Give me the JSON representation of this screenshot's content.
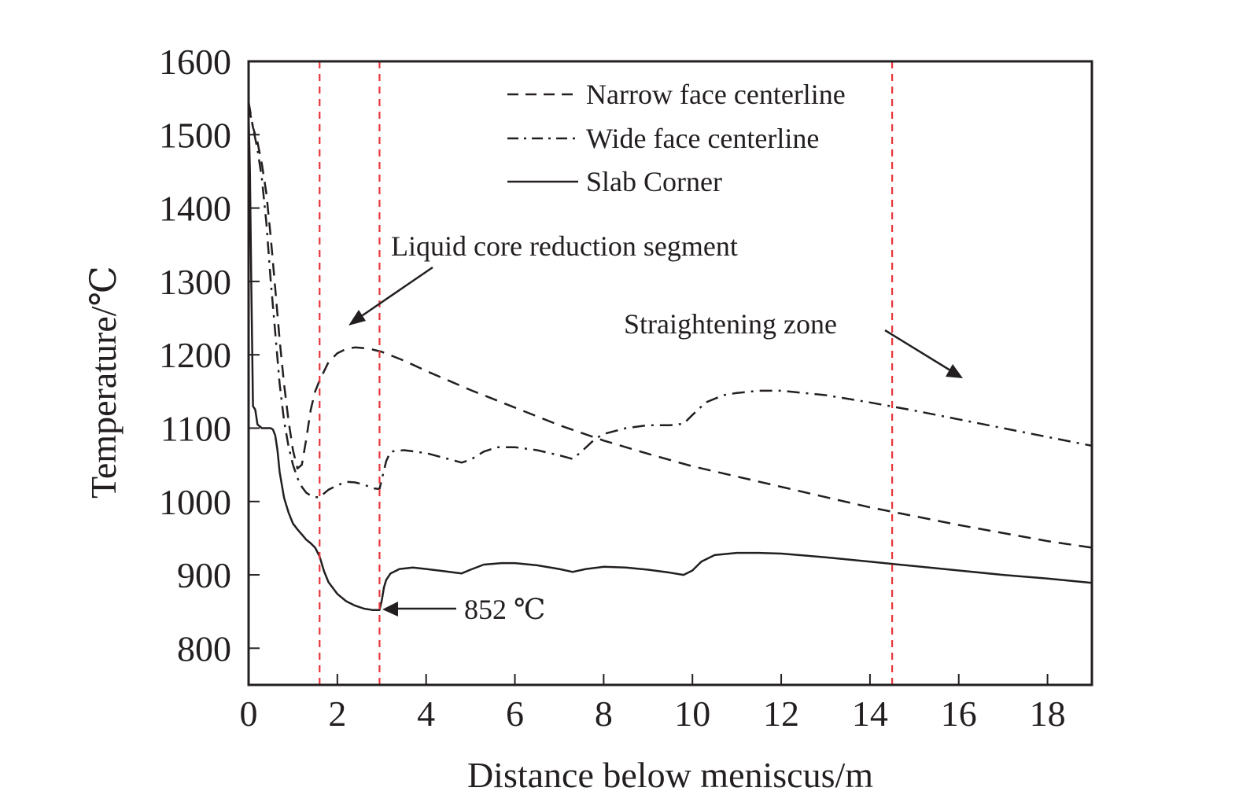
{
  "chart_data": {
    "type": "line",
    "title": "",
    "xlabel": "Distance below meniscus/m",
    "ylabel": "Temperature/℃",
    "xlim": [
      0,
      19
    ],
    "ylim": [
      750,
      1600
    ],
    "xticks": [
      0,
      2,
      4,
      6,
      8,
      10,
      12,
      14,
      16,
      18
    ],
    "yticks": [
      800,
      900,
      1000,
      1100,
      1200,
      1300,
      1400,
      1500,
      1600
    ],
    "grid": false,
    "legend_position": "top-right",
    "line_color": "#231f20",
    "marker_line_color": "#e8353a",
    "series": [
      {
        "name": "Narrow face centerline",
        "style": "dashed",
        "x": [
          0,
          0.1,
          0.2,
          0.3,
          0.4,
          0.5,
          0.6,
          0.7,
          0.8,
          0.9,
          1.0,
          1.1,
          1.2,
          1.3,
          1.4,
          1.5,
          1.6,
          1.8,
          2.0,
          2.2,
          2.4,
          2.6,
          2.8,
          3.0,
          3.5,
          4,
          5,
          6,
          7,
          8,
          9,
          10,
          11,
          12,
          13,
          14,
          15,
          16,
          17,
          18,
          19
        ],
        "y": [
          1545,
          1510,
          1490,
          1460,
          1420,
          1360,
          1290,
          1220,
          1160,
          1110,
          1070,
          1045,
          1050,
          1085,
          1125,
          1150,
          1165,
          1190,
          1202,
          1208,
          1210,
          1209,
          1207,
          1204,
          1192,
          1178,
          1152,
          1128,
          1104,
          1083,
          1065,
          1048,
          1034,
          1020,
          1006,
          992,
          980,
          968,
          957,
          946,
          937
        ]
      },
      {
        "name": "Wide face centerline",
        "style": "dash-dot",
        "x": [
          0,
          0.1,
          0.2,
          0.3,
          0.4,
          0.5,
          0.6,
          0.7,
          0.8,
          0.9,
          1.0,
          1.1,
          1.2,
          1.3,
          1.4,
          1.5,
          1.6,
          1.8,
          2.0,
          2.2,
          2.4,
          2.6,
          2.8,
          2.95,
          3.0,
          3.1,
          3.2,
          3.5,
          4.0,
          4.5,
          4.8,
          5.0,
          5.3,
          5.6,
          6.0,
          6.5,
          7.0,
          7.3,
          7.5,
          7.8,
          8.0,
          8.5,
          9.0,
          9.5,
          9.8,
          10.0,
          10.3,
          10.7,
          11.0,
          11.5,
          12,
          13,
          14,
          15,
          16,
          17,
          18,
          19
        ],
        "y": [
          1540,
          1510,
          1480,
          1440,
          1380,
          1300,
          1230,
          1160,
          1110,
          1075,
          1050,
          1032,
          1020,
          1012,
          1008,
          1006,
          1006,
          1016,
          1022,
          1027,
          1026,
          1023,
          1018,
          1017,
          1030,
          1055,
          1068,
          1070,
          1066,
          1058,
          1053,
          1057,
          1068,
          1074,
          1074,
          1070,
          1063,
          1058,
          1068,
          1085,
          1092,
          1100,
          1104,
          1104,
          1106,
          1118,
          1135,
          1145,
          1148,
          1151,
          1151,
          1145,
          1135,
          1124,
          1112,
          1100,
          1088,
          1076
        ]
      },
      {
        "name": "Slab Corner",
        "style": "solid",
        "x": [
          0,
          0.03,
          0.06,
          0.1,
          0.15,
          0.2,
          0.3,
          0.4,
          0.5,
          0.55,
          0.6,
          0.65,
          0.7,
          0.8,
          0.9,
          1.0,
          1.1,
          1.2,
          1.3,
          1.4,
          1.5,
          1.6,
          1.7,
          1.8,
          2.0,
          2.2,
          2.4,
          2.6,
          2.8,
          2.95,
          3.0,
          3.05,
          3.1,
          3.2,
          3.4,
          3.7,
          4.0,
          4.4,
          4.8,
          5.0,
          5.3,
          5.7,
          6.0,
          6.5,
          7.0,
          7.3,
          7.6,
          8.0,
          8.5,
          9.0,
          9.5,
          9.8,
          10.0,
          10.2,
          10.5,
          11.0,
          11.5,
          12,
          13,
          14,
          15,
          16,
          17,
          18,
          19
        ],
        "y": [
          1530,
          1450,
          1300,
          1130,
          1125,
          1105,
          1100,
          1100,
          1100,
          1098,
          1090,
          1070,
          1040,
          1005,
          985,
          970,
          962,
          955,
          948,
          943,
          937,
          925,
          905,
          890,
          874,
          864,
          858,
          854,
          852,
          852,
          865,
          883,
          893,
          902,
          908,
          910,
          908,
          905,
          902,
          907,
          914,
          916,
          916,
          913,
          908,
          904,
          908,
          911,
          910,
          907,
          903,
          900,
          906,
          918,
          927,
          930,
          930,
          929,
          924,
          918,
          912,
          906,
          900,
          895,
          889
        ]
      }
    ],
    "vertical_markers": [
      1.6,
      2.95,
      14.5
    ],
    "annotations": [
      {
        "text": "Liquid core reduction segment"
      },
      {
        "text": "Straightening zone"
      },
      {
        "text": "852 ℃"
      }
    ]
  }
}
